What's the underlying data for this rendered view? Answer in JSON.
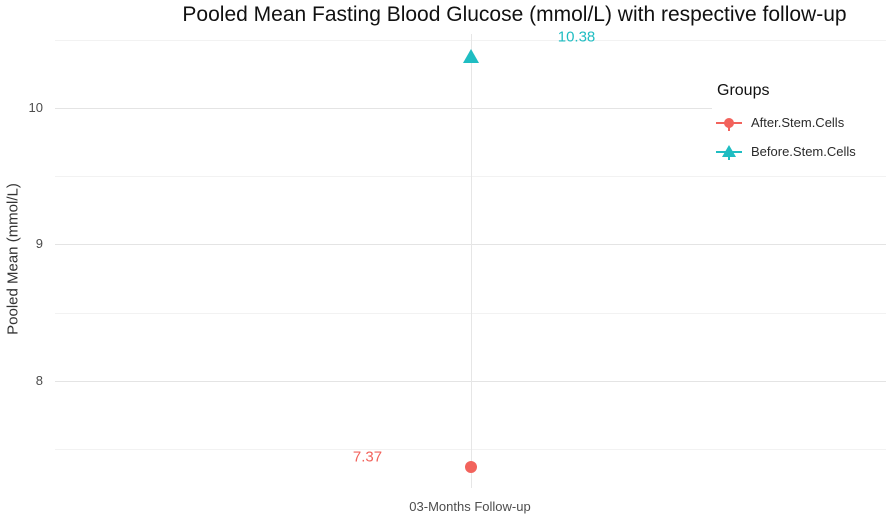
{
  "chart_data": {
    "type": "scatter",
    "title": "Pooled Mean Fasting Blood Glucose (mmol/L) with respective follow-up",
    "xlabel": "",
    "ylabel": "Pooled Mean (mmol/L)",
    "categories": [
      "03-Months Follow-up"
    ],
    "series": [
      {
        "name": "After.Stem.Cells",
        "marker": "circle",
        "color": "#F2635C",
        "values": [
          7.37
        ],
        "label_side": "left"
      },
      {
        "name": "Before.Stem.Cells",
        "marker": "triangle",
        "color": "#1FBDC2",
        "values": [
          10.38
        ],
        "label_side": "right"
      }
    ],
    "ylim": [
      7.2,
      10.6
    ],
    "yticks": [
      8,
      9,
      10
    ],
    "yticks_minor": [
      7.5,
      8.5,
      9.5,
      10.5
    ],
    "grid": "on",
    "legend": {
      "title": "Groups",
      "position": "inside-top-right",
      "entries": [
        "After.Stem.Cells",
        "Before.Stem.Cells"
      ]
    }
  },
  "colors": {
    "background": "#FFFFFF",
    "grid_major": "#E4E4E4",
    "grid_minor": "#F2F2F2",
    "title_text": "#111111",
    "axis_tick_text": "#4D4D4D",
    "axis_title_text": "#333333",
    "legend_text": "#2B2B2B",
    "after_stem_cells": "#F2635C",
    "before_stem_cells": "#1FBDC2"
  }
}
